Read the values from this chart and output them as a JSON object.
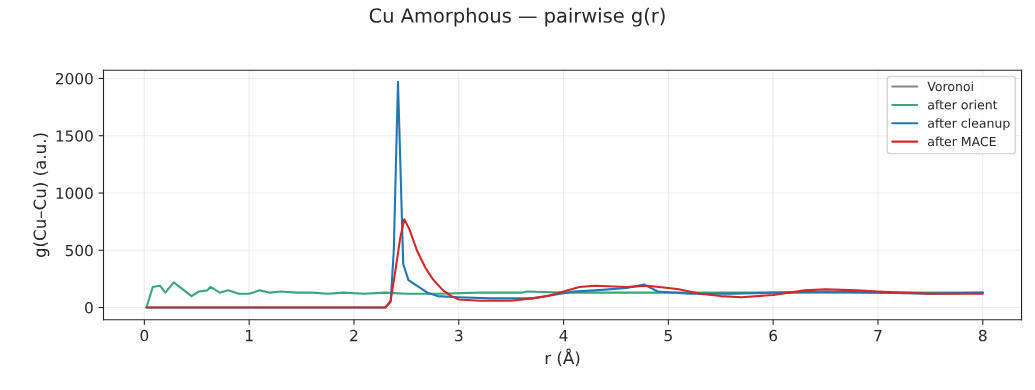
{
  "chart_data": {
    "type": "line",
    "title": "Cu Amorphous — pairwise g(r)",
    "xlabel": "r (Å)",
    "ylabel": "g(Cu–Cu) (a.u.)",
    "xlim": [
      -0.39,
      8.37
    ],
    "ylim": [
      -107,
      2072
    ],
    "xticks": [
      0,
      1,
      2,
      3,
      4,
      5,
      6,
      7,
      8
    ],
    "yticks": [
      0,
      500,
      1000,
      1500,
      2000
    ],
    "grid": true,
    "legend": "top right",
    "line_style": "solid",
    "marker": "none",
    "series": [
      {
        "name": "Voronoi",
        "color": "#888888"
      },
      {
        "name": "after orient",
        "color": "#3aa876",
        "x": [
          0.02,
          0.08,
          0.15,
          0.2,
          0.28,
          0.38,
          0.45,
          0.52,
          0.6,
          0.63,
          0.72,
          0.8,
          0.9,
          1.0,
          1.1,
          1.2,
          1.3,
          1.45,
          1.6,
          1.75,
          1.9,
          2.1,
          2.3,
          2.5,
          2.8,
          3.2,
          3.6,
          3.65,
          4.0,
          4.5,
          5.0,
          5.5,
          6.0,
          6.5,
          7.0,
          7.5,
          8.0
        ],
        "values": [
          0,
          180,
          190,
          130,
          220,
          150,
          100,
          140,
          150,
          180,
          130,
          150,
          120,
          120,
          150,
          130,
          140,
          130,
          130,
          120,
          130,
          120,
          130,
          120,
          120,
          130,
          130,
          140,
          130,
          130,
          130,
          130,
          130,
          130,
          130,
          130,
          130
        ]
      },
      {
        "name": "after cleanup",
        "color": "#1f77b4",
        "x": [
          0.02,
          2.3,
          2.35,
          2.38,
          2.42,
          2.47,
          2.52,
          2.7,
          2.8,
          3.0,
          3.3,
          3.7,
          3.9,
          4.1,
          4.3,
          4.6,
          4.77,
          4.9,
          5.2,
          5.6,
          6.0,
          6.5,
          7.0,
          7.5,
          8.0
        ],
        "values": [
          0,
          0,
          50,
          500,
          1970,
          380,
          240,
          130,
          100,
          90,
          80,
          80,
          110,
          140,
          150,
          170,
          200,
          140,
          120,
          120,
          130,
          140,
          130,
          120,
          130
        ]
      },
      {
        "name": "after MACE",
        "color": "#d62728",
        "x": [
          0.02,
          2.3,
          2.35,
          2.4,
          2.44,
          2.48,
          2.53,
          2.6,
          2.68,
          2.75,
          2.85,
          2.93,
          3.0,
          3.2,
          3.5,
          3.7,
          3.85,
          4.0,
          4.15,
          4.3,
          4.6,
          4.8,
          5.0,
          5.1,
          5.3,
          5.5,
          5.7,
          6.0,
          6.3,
          6.5,
          6.8,
          7.0,
          7.5,
          7.8,
          8.0
        ],
        "values": [
          0,
          0,
          60,
          350,
          600,
          770,
          680,
          500,
          350,
          250,
          150,
          100,
          70,
          60,
          60,
          80,
          100,
          140,
          180,
          190,
          180,
          190,
          170,
          160,
          120,
          100,
          90,
          110,
          150,
          160,
          150,
          140,
          120,
          120,
          120
        ]
      }
    ]
  }
}
